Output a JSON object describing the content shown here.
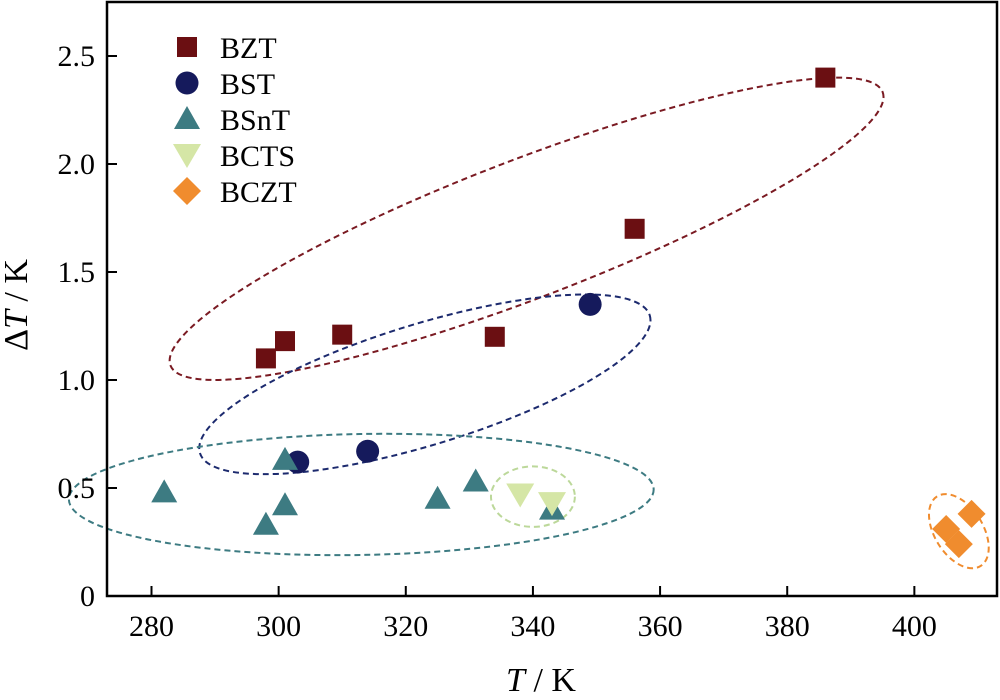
{
  "chart_data": {
    "type": "scatter",
    "title": "",
    "xlabel_symbol": "T",
    "xlabel_unit": " / K",
    "ylabel_prefix": "Δ",
    "ylabel_symbol": "T",
    "ylabel_unit": " / K",
    "xlim": [
      273,
      413
    ],
    "ylim": [
      0,
      2.75
    ],
    "xticks": [
      280,
      300,
      320,
      340,
      360,
      380,
      400
    ],
    "yticks": [
      0,
      0.5,
      1.0,
      1.5,
      2.0,
      2.5
    ],
    "ytick_labels": [
      "0",
      "0.5",
      "1.0",
      "1.5",
      "2.0",
      "2.5"
    ],
    "grid": false,
    "legend_position": "top-left",
    "series": [
      {
        "name": "BZT",
        "marker": "square",
        "color": "#6b0f12",
        "x": [
          298,
          301,
          310,
          334,
          356,
          386
        ],
        "y": [
          1.1,
          1.18,
          1.21,
          1.2,
          1.7,
          2.4
        ]
      },
      {
        "name": "BST",
        "marker": "circle",
        "color": "#151a5c",
        "x": [
          303,
          314,
          349
        ],
        "y": [
          0.62,
          0.67,
          1.35
        ]
      },
      {
        "name": "BSnT",
        "marker": "triangle-up",
        "color": "#3d7b82",
        "x": [
          282,
          298,
          301,
          301,
          325,
          331,
          343
        ],
        "y": [
          0.48,
          0.33,
          0.42,
          0.63,
          0.45,
          0.53,
          0.4
        ]
      },
      {
        "name": "BCTS",
        "marker": "triangle-down",
        "color": "#d5e6a6",
        "x": [
          338,
          343
        ],
        "y": [
          0.47,
          0.43
        ]
      },
      {
        "name": "BCZT",
        "marker": "diamond",
        "color": "#f08c2e",
        "x": [
          405,
          407,
          409
        ],
        "y": [
          0.31,
          0.24,
          0.38
        ]
      }
    ],
    "annotations": [
      {
        "type": "dashed-ellipse",
        "group": "BZT",
        "color": "#7a1a22",
        "center": [
          339,
          1.7
        ],
        "rx": 60,
        "ry": 0.32,
        "angle_deg": -21
      },
      {
        "type": "dashed-ellipse",
        "group": "BST",
        "color": "#1c2a6e",
        "center": [
          323,
          0.98
        ],
        "rx": 37,
        "ry": 0.28,
        "angle_deg": -17
      },
      {
        "type": "dashed-ellipse",
        "group": "BSnT",
        "color": "#3d7b82",
        "center": [
          313,
          0.47
        ],
        "rx": 46,
        "ry": 0.28,
        "angle_deg": -1
      },
      {
        "type": "dashed-ellipse",
        "group": "BCTS",
        "color": "#bcd89a",
        "center": [
          340,
          0.46
        ],
        "rx": 6.6,
        "ry": 0.14,
        "angle_deg": 0
      },
      {
        "type": "dashed-ellipse",
        "group": "BCZT",
        "color": "#f08c2e",
        "center": [
          407,
          0.3
        ],
        "rx": 3.8,
        "ry": 0.19,
        "angle_deg": -32
      }
    ]
  }
}
